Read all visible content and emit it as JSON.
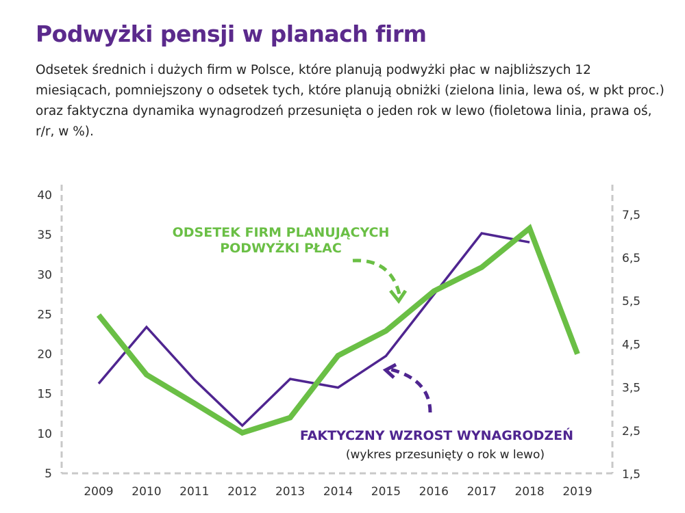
{
  "title": "Podwyżki pensji w planach firm",
  "subtitle": "Odsetek średnich i dużych firm w Polsce, które planują podwyżki płac w najbliższych 12 miesiącach, pomniejszony o odsetek tych, które planują obniżki (zielona linia, lewa oś, w pkt proc.) oraz faktyczna dynamika wynagrodzeń przesunięta o jeden rok w lewo (fioletowa linia, prawa oś, r/r, w %).",
  "colors": {
    "green": "#6abf45",
    "purple": "#4f2590",
    "title": "#5b2a8c",
    "grid": "#c8c8c8"
  },
  "chart_data": {
    "type": "line",
    "x": [
      2009,
      2010,
      2011,
      2012,
      2013,
      2014,
      2015,
      2016,
      2017,
      2018,
      2019
    ],
    "x_tick_labels": [
      "2009",
      "2010",
      "2011",
      "2012",
      "2013",
      "2014",
      "2015",
      "2016",
      "2017",
      "2018",
      "2019"
    ],
    "y_left": {
      "ylim": [
        5,
        40
      ],
      "tick_labels": [
        "5",
        "10",
        "15",
        "20",
        "25",
        "30",
        "35",
        "40"
      ],
      "ticks": [
        5,
        10,
        15,
        20,
        25,
        30,
        35,
        40
      ]
    },
    "y_right": {
      "ylim": [
        1.5,
        8.0
      ],
      "tick_labels": [
        "1,5",
        "2,5",
        "3,5",
        "4,5",
        "5,5",
        "6,5",
        "7,5"
      ],
      "ticks": [
        1.5,
        2.5,
        3.5,
        4.5,
        5.5,
        6.5,
        7.5
      ]
    },
    "grid": false,
    "series": [
      {
        "name": "ODSETEK FIRM PLANUJĄCYCH PODWYŻKI PŁAC",
        "axis": "left",
        "color": "#6abf45",
        "values": [
          24.9,
          17.4,
          13.8,
          10.1,
          12.0,
          19.8,
          22.9,
          27.9,
          30.9,
          35.8,
          20.0
        ]
      },
      {
        "name": "FAKTYCZNY WZROST WYNAGRODZEŃ",
        "axis": "right",
        "color": "#4f2590",
        "values": [
          3.59,
          4.9,
          3.68,
          2.62,
          3.7,
          3.5,
          4.23,
          5.65,
          7.07,
          6.86,
          null
        ]
      }
    ],
    "annotations": {
      "green_label_line1": "ODSETEK FIRM PLANUJĄCYCH",
      "green_label_line2": "PODWYŻKI PŁAC",
      "purple_label": "FAKTYCZNY WZROST WYNAGRODZEŃ",
      "purple_sublabel": "(wykres przesunięty o rok w lewo)"
    }
  }
}
